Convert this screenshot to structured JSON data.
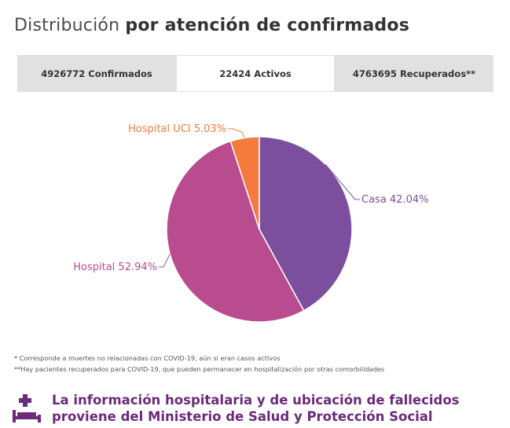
{
  "header": {
    "title_light": "Distribución",
    "title_bold": "por atención de confirmados"
  },
  "tabs": [
    {
      "label": "4926772 Confirmados",
      "active": false
    },
    {
      "label": "22424 Activos",
      "active": true
    },
    {
      "label": "4763695 Recuperados**",
      "active": false
    }
  ],
  "chart_data": {
    "type": "pie",
    "title": "",
    "slices": [
      {
        "label": "Casa 42.04%",
        "name": "Casa",
        "value": 42.04,
        "color": "#7b4f9d"
      },
      {
        "label": "Hospital 52.94%",
        "name": "Hospital",
        "value": 52.94,
        "color": "#b94c8f"
      },
      {
        "label": "Hospital UCI 5.03%",
        "name": "Hospital UCI",
        "value": 5.03,
        "color": "#f47a3d"
      }
    ],
    "label_colors": {
      "Casa": "#7b4f9d",
      "Hospital": "#b94c8f",
      "Hospital UCI": "#f47a3d"
    }
  },
  "notes": [
    "* Corresponde a muertes no relacionadas con COVID-19, aún si eran casos activos",
    "**Hay pacientes recuperados para COVID-19, que pueden permanecer en hospitalización por otras comorbilidades"
  ],
  "footer": {
    "line1": "La información hospitalaria y de ubicación de fallecidos",
    "line2": "proviene del Ministerio de Salud y Protección Social",
    "icon": "hospital-bed-icon",
    "color": "#6b2a7a"
  }
}
